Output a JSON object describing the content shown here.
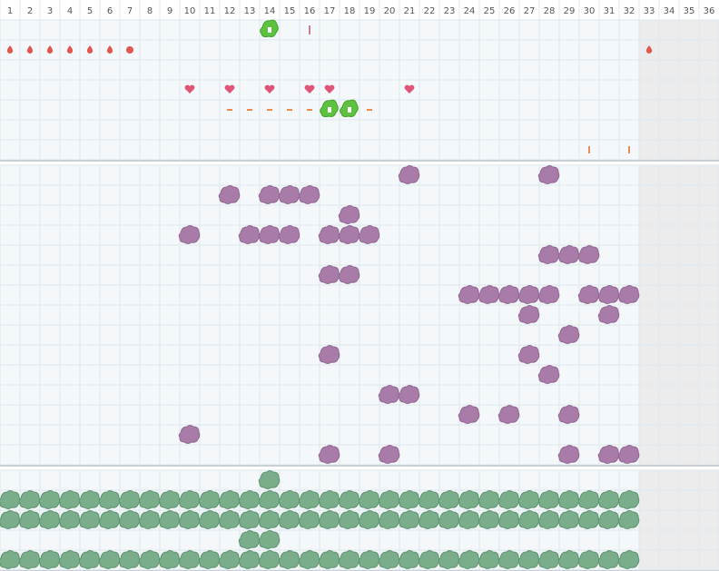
{
  "columns": [
    1,
    2,
    3,
    4,
    5,
    6,
    7,
    8,
    9,
    10,
    11,
    12,
    13,
    14,
    15,
    16,
    17,
    18,
    19,
    20,
    21,
    22,
    23,
    24,
    25,
    26,
    27,
    28,
    29,
    30,
    31,
    32,
    33,
    34,
    35,
    36
  ],
  "sections": [
    {
      "rows": [
        [
          14,
          16
        ],
        [
          1,
          2,
          3,
          4,
          5,
          6,
          7,
          33
        ],
        [],
        [
          10,
          12,
          14,
          16,
          17,
          21
        ],
        [
          12,
          13,
          14,
          15,
          16,
          17,
          18,
          19
        ],
        [],
        [
          30,
          32
        ]
      ]
    },
    {
      "rows": [
        [
          21,
          28
        ],
        [
          12,
          14,
          15,
          16
        ],
        [
          18
        ],
        [
          10,
          13,
          14,
          15,
          17,
          18,
          19
        ],
        [
          28,
          29,
          30
        ],
        [
          17,
          18
        ],
        [
          24,
          25,
          26,
          27,
          28,
          30,
          31,
          32
        ],
        [
          27,
          31
        ],
        [
          29
        ],
        [
          17,
          27
        ],
        [
          28
        ],
        [
          20,
          21
        ],
        [
          24,
          26,
          29
        ],
        [
          10
        ],
        [
          17,
          20,
          29,
          31,
          32
        ]
      ]
    },
    {
      "rows": [
        [
          14
        ],
        [
          1,
          2,
          3,
          4,
          5,
          6,
          7,
          8,
          9,
          10,
          11,
          12,
          13,
          14,
          15,
          16,
          17,
          18,
          19,
          20,
          21,
          22,
          23,
          24,
          25,
          26,
          27,
          28,
          29,
          30,
          31,
          32
        ],
        [
          1,
          2,
          3,
          4,
          5,
          6,
          7,
          8,
          9,
          10,
          11,
          12,
          13,
          14,
          15,
          16,
          17,
          18,
          19,
          20,
          21,
          22,
          23,
          24,
          25,
          26,
          27,
          28,
          29,
          30,
          31,
          32
        ],
        [
          13,
          14
        ],
        [
          1,
          2,
          3,
          4,
          5,
          6,
          7,
          8,
          9,
          10,
          11,
          12,
          13,
          14,
          15,
          16,
          17,
          18,
          19,
          20,
          21,
          22,
          23,
          24,
          25,
          26,
          27,
          28,
          29,
          30,
          31,
          32
        ]
      ]
    }
  ]
}
